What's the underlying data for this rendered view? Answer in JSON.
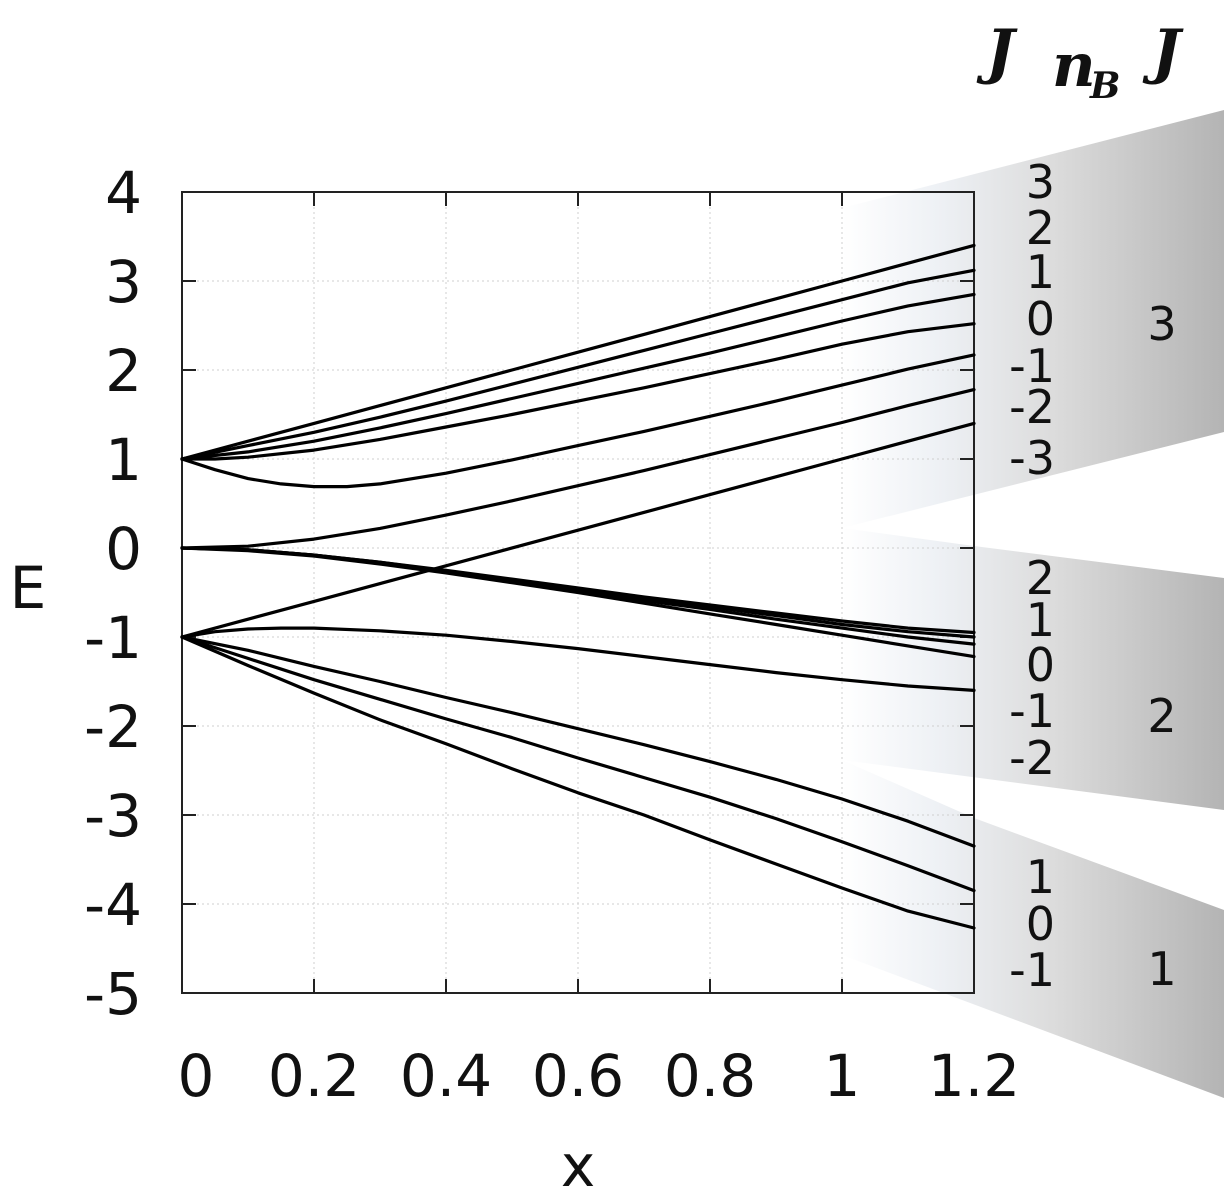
{
  "chart_data": {
    "type": "line",
    "xlabel": "x",
    "ylabel": "E",
    "xlim": [
      0,
      1.2
    ],
    "ylim": [
      -5,
      4
    ],
    "x_ticks": [
      "0",
      "0.2",
      "0.4",
      "0.6",
      "0.8",
      "1",
      "1.2"
    ],
    "y_ticks": [
      "-5",
      "-4",
      "-3",
      "-2",
      "-1",
      "0",
      "1",
      "2",
      "3",
      "4"
    ],
    "grid": true,
    "line_color": "#000000",
    "shade_color": "#b4b4b4",
    "header": {
      "left": "J",
      "middle_main": "n",
      "middle_sub": "B",
      "right": "J"
    },
    "groups": [
      {
        "J": "3",
        "levels": [
          "3",
          "2",
          "1",
          "0",
          "-1",
          "-2",
          "-3"
        ],
        "series": [
          {
            "x": [
              0,
              0.1,
              0.2,
              0.3,
              0.4,
              0.5,
              0.6,
              0.7,
              0.8,
              0.9,
              1.0,
              1.1,
              1.2
            ],
            "y": [
              1.0,
              1.2,
              1.4,
              1.6,
              1.8,
              2.0,
              2.2,
              2.4,
              2.6,
              2.8,
              3.0,
              3.2,
              3.4
            ]
          },
          {
            "x": [
              0,
              0.1,
              0.2,
              0.3,
              0.4,
              0.5,
              0.6,
              0.7,
              0.8,
              0.9,
              1.0,
              1.1,
              1.2
            ],
            "y": [
              1.0,
              1.15,
              1.3,
              1.47,
              1.65,
              1.84,
              2.03,
              2.22,
              2.41,
              2.6,
              2.79,
              2.98,
              3.12
            ]
          },
          {
            "x": [
              0,
              0.1,
              0.2,
              0.3,
              0.4,
              0.5,
              0.6,
              0.7,
              0.8,
              0.9,
              1.0,
              1.1,
              1.2
            ],
            "y": [
              1.0,
              1.08,
              1.2,
              1.35,
              1.51,
              1.68,
              1.85,
              2.02,
              2.19,
              2.37,
              2.55,
              2.72,
              2.85
            ]
          },
          {
            "x": [
              0,
              0.05,
              0.1,
              0.2,
              0.3,
              0.4,
              0.5,
              0.6,
              0.7,
              0.8,
              0.9,
              1.0,
              1.1,
              1.2
            ],
            "y": [
              1.0,
              1.0,
              1.02,
              1.1,
              1.22,
              1.36,
              1.5,
              1.65,
              1.8,
              1.96,
              2.12,
              2.29,
              2.43,
              2.52
            ]
          },
          {
            "x": [
              0,
              0.05,
              0.1,
              0.15,
              0.2,
              0.25,
              0.3,
              0.4,
              0.5,
              0.6,
              0.7,
              0.8,
              0.9,
              1.0,
              1.1,
              1.2
            ],
            "y": [
              1.0,
              0.88,
              0.78,
              0.72,
              0.69,
              0.69,
              0.72,
              0.84,
              0.99,
              1.15,
              1.31,
              1.48,
              1.65,
              1.83,
              2.01,
              2.17
            ]
          },
          {
            "x": [
              0,
              0.1,
              0.2,
              0.3,
              0.4,
              0.5,
              0.6,
              0.7,
              0.8,
              0.9,
              1.0,
              1.1,
              1.2
            ],
            "y": [
              0.0,
              0.02,
              0.1,
              0.22,
              0.37,
              0.53,
              0.7,
              0.87,
              1.05,
              1.23,
              1.41,
              1.6,
              1.78
            ]
          },
          {
            "x": [
              0,
              0.2,
              0.4,
              0.6,
              0.8,
              1.0,
              1.2
            ],
            "y": [
              -1.0,
              -0.6,
              -0.2,
              0.2,
              0.6,
              1.0,
              1.4
            ]
          }
        ]
      },
      {
        "J": "2",
        "levels": [
          "2",
          "1",
          "0",
          "-1",
          "-2"
        ],
        "series": [
          {
            "x": [
              0,
              0.1,
              0.2,
              0.3,
              0.4,
              0.5,
              0.6,
              0.7,
              0.8,
              0.9,
              1.0,
              1.1,
              1.2
            ],
            "y": [
              0.0,
              -0.02,
              -0.08,
              -0.16,
              -0.25,
              -0.35,
              -0.45,
              -0.55,
              -0.64,
              -0.73,
              -0.82,
              -0.9,
              -0.95
            ]
          },
          {
            "x": [
              0,
              0.1,
              0.2,
              0.3,
              0.4,
              0.5,
              0.6,
              0.7,
              0.8,
              0.9,
              1.0,
              1.1,
              1.2
            ],
            "y": [
              0.0,
              -0.02,
              -0.08,
              -0.16,
              -0.26,
              -0.36,
              -0.46,
              -0.56,
              -0.66,
              -0.76,
              -0.86,
              -0.94,
              -1.0
            ]
          },
          {
            "x": [
              0,
              0.1,
              0.2,
              0.3,
              0.4,
              0.5,
              0.6,
              0.7,
              0.8,
              0.9,
              1.0,
              1.1,
              1.2
            ],
            "y": [
              0.0,
              -0.02,
              -0.08,
              -0.17,
              -0.27,
              -0.37,
              -0.48,
              -0.59,
              -0.69,
              -0.8,
              -0.9,
              -1.0,
              -1.08
            ]
          },
          {
            "x": [
              0,
              0.1,
              0.2,
              0.3,
              0.4,
              0.5,
              0.6,
              0.7,
              0.8,
              0.9,
              1.0,
              1.1,
              1.2
            ],
            "y": [
              0.0,
              -0.03,
              -0.09,
              -0.18,
              -0.28,
              -0.39,
              -0.5,
              -0.62,
              -0.74,
              -0.86,
              -0.98,
              -1.1,
              -1.22
            ]
          },
          {
            "x": [
              0,
              0.05,
              0.1,
              0.15,
              0.2,
              0.3,
              0.4,
              0.5,
              0.6,
              0.7,
              0.8,
              0.9,
              1.0,
              1.1,
              1.2
            ],
            "y": [
              -1.0,
              -0.94,
              -0.91,
              -0.9,
              -0.9,
              -0.93,
              -0.98,
              -1.05,
              -1.13,
              -1.22,
              -1.31,
              -1.4,
              -1.48,
              -1.55,
              -1.6
            ]
          }
        ]
      },
      {
        "J": "1",
        "levels": [
          "1",
          "0",
          "-1"
        ],
        "series": [
          {
            "x": [
              0,
              0.1,
              0.2,
              0.3,
              0.4,
              0.5,
              0.6,
              0.7,
              0.8,
              0.9,
              1.0,
              1.1,
              1.2
            ],
            "y": [
              -1.0,
              -1.15,
              -1.33,
              -1.5,
              -1.68,
              -1.85,
              -2.03,
              -2.21,
              -2.4,
              -2.6,
              -2.82,
              -3.07,
              -3.35
            ]
          },
          {
            "x": [
              0,
              0.1,
              0.2,
              0.3,
              0.4,
              0.5,
              0.6,
              0.7,
              0.8,
              0.9,
              1.0,
              1.1,
              1.2
            ],
            "y": [
              -1.0,
              -1.24,
              -1.48,
              -1.7,
              -1.92,
              -2.13,
              -2.36,
              -2.58,
              -2.8,
              -3.04,
              -3.3,
              -3.57,
              -3.85
            ]
          },
          {
            "x": [
              0,
              0.1,
              0.2,
              0.3,
              0.4,
              0.5,
              0.6,
              0.7,
              0.8,
              0.9,
              1.0,
              1.1,
              1.2
            ],
            "y": [
              -1.0,
              -1.32,
              -1.63,
              -1.93,
              -2.2,
              -2.48,
              -2.75,
              -3.0,
              -3.28,
              -3.55,
              -3.82,
              -4.08,
              -4.27
            ]
          }
        ]
      }
    ]
  }
}
